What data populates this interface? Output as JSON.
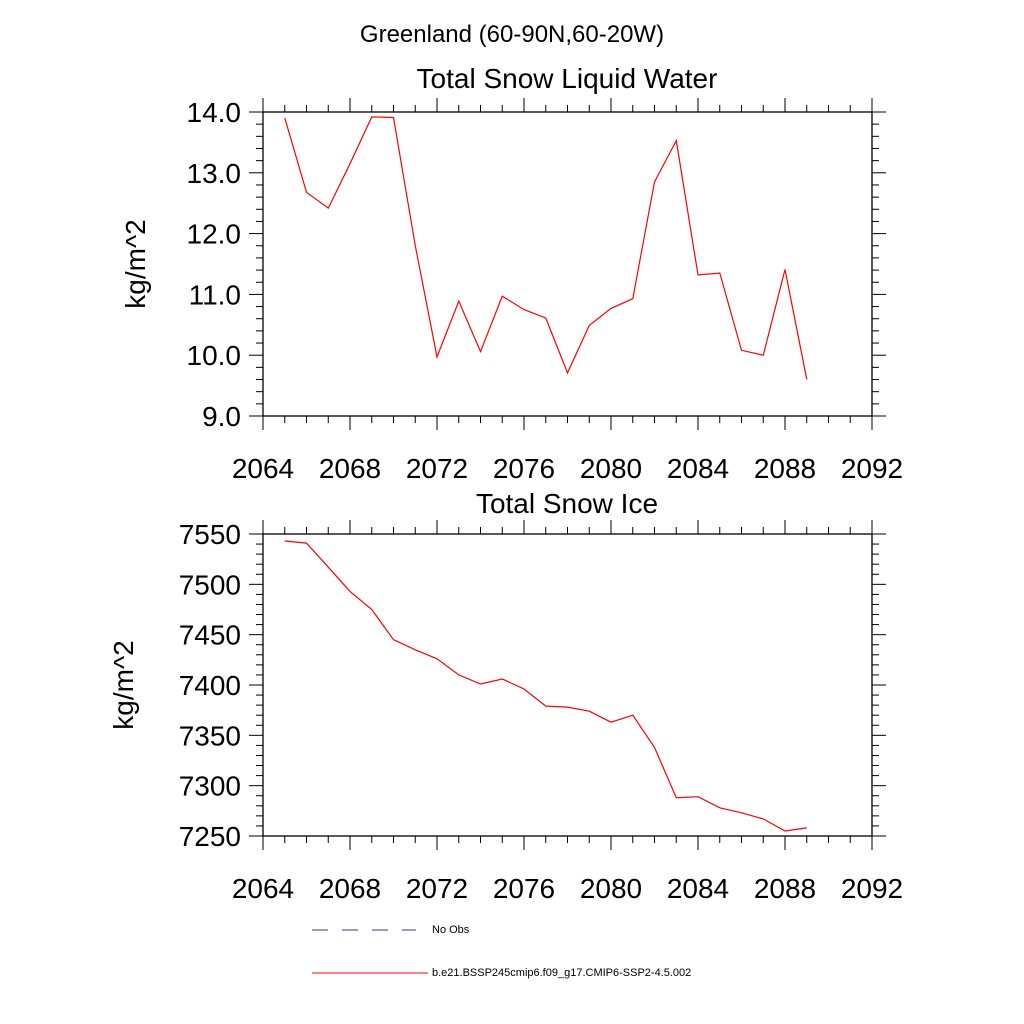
{
  "figure": {
    "title": "Greenland (60-90N,60-20W)"
  },
  "chart_data": [
    {
      "type": "line",
      "title": "Total Snow Liquid Water",
      "xlabel": "",
      "ylabel": "kg/m^2",
      "xlim": [
        2064,
        2092
      ],
      "ylim": [
        9.0,
        14.0
      ],
      "x_ticks": [
        "2064",
        "2068",
        "2072",
        "2076",
        "2080",
        "2084",
        "2088",
        "2092"
      ],
      "y_ticks": [
        "9.0",
        "10.0",
        "11.0",
        "12.0",
        "13.0",
        "14.0"
      ],
      "grid": false,
      "series": [
        {
          "name": "b.e21.BSSP245cmip6.f09_g17.CMIP6-SSP2-4.5.002",
          "color": "#ff0000",
          "x": [
            2065,
            2066,
            2067,
            2068,
            2069,
            2070,
            2071,
            2072,
            2073,
            2074,
            2075,
            2076,
            2077,
            2078,
            2079,
            2080,
            2081,
            2082,
            2083,
            2084,
            2085,
            2086,
            2087,
            2088,
            2089
          ],
          "values": [
            13.9,
            12.68,
            12.42,
            13.15,
            13.92,
            13.91,
            11.8,
            9.97,
            10.89,
            10.06,
            10.97,
            10.75,
            10.61,
            9.71,
            10.49,
            10.77,
            10.93,
            12.85,
            13.53,
            11.32,
            11.35,
            10.08,
            10.0,
            11.41,
            9.6
          ]
        }
      ]
    },
    {
      "type": "line",
      "title": "Total Snow Ice",
      "xlabel": "",
      "ylabel": "kg/m^2",
      "xlim": [
        2064,
        2092
      ],
      "ylim": [
        7250,
        7550
      ],
      "x_ticks": [
        "2064",
        "2068",
        "2072",
        "2076",
        "2080",
        "2084",
        "2088",
        "2092"
      ],
      "y_ticks": [
        "7250",
        "7300",
        "7350",
        "7400",
        "7450",
        "7500",
        "7550"
      ],
      "grid": false,
      "series": [
        {
          "name": "b.e21.BSSP245cmip6.f09_g17.CMIP6-SSP2-4.5.002",
          "color": "#ff0000",
          "x": [
            2065,
            2066,
            2067,
            2068,
            2069,
            2070,
            2071,
            2072,
            2073,
            2074,
            2075,
            2076,
            2077,
            2078,
            2079,
            2080,
            2081,
            2082,
            2083,
            2084,
            2085,
            2086,
            2087,
            2088,
            2089
          ],
          "values": [
            7543,
            7541,
            7517,
            7493,
            7475,
            7445,
            7435,
            7426,
            7410,
            7401,
            7406,
            7396,
            7379,
            7378,
            7374,
            7363,
            7370,
            7338,
            7288,
            7289,
            7278,
            7273,
            7267,
            7255,
            7258
          ]
        }
      ]
    }
  ],
  "legend": {
    "items": [
      {
        "label": "No Obs",
        "color": "#3a3a8c",
        "dash": "dashed"
      },
      {
        "label": "b.e21.BSSP245cmip6.f09_g17.CMIP6-SSP2-4.5.002",
        "color": "#ff0000",
        "dash": "solid"
      }
    ]
  }
}
